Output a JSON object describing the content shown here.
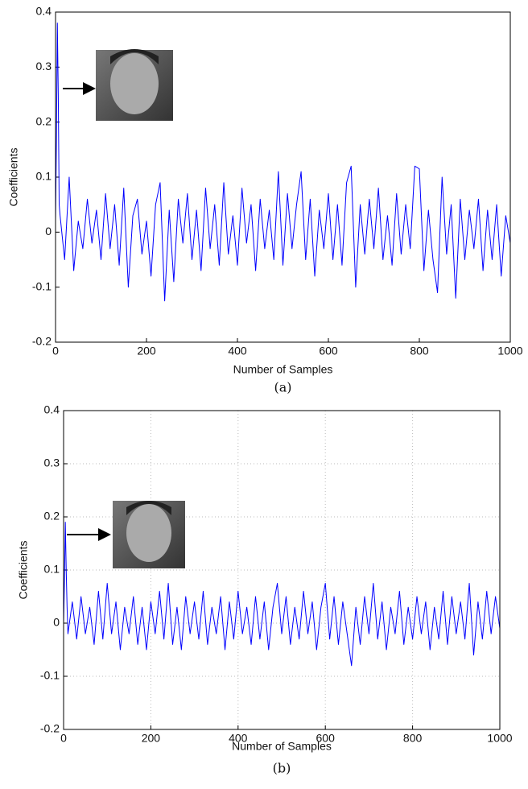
{
  "chart_data": [
    {
      "type": "line",
      "caption": "(a)",
      "xlabel": "Number of Samples",
      "ylabel": "Coefficients",
      "color": "#0000ff",
      "grid": false,
      "xlim": [
        0,
        1000
      ],
      "xticks": [
        0,
        200,
        400,
        600,
        800,
        1000
      ],
      "ylim": [
        -0.2,
        0.4
      ],
      "yticks": [
        -0.2,
        -0.1,
        0,
        0.1,
        0.2,
        0.3,
        0.4
      ],
      "x": [
        0,
        2,
        4,
        6,
        8,
        10,
        20,
        30,
        40,
        50,
        60,
        70,
        80,
        90,
        100,
        110,
        120,
        130,
        140,
        150,
        160,
        170,
        180,
        190,
        200,
        210,
        220,
        230,
        240,
        250,
        260,
        270,
        280,
        290,
        300,
        310,
        320,
        330,
        340,
        350,
        360,
        370,
        380,
        390,
        400,
        410,
        420,
        430,
        440,
        450,
        460,
        470,
        480,
        490,
        500,
        510,
        520,
        530,
        540,
        550,
        560,
        570,
        580,
        590,
        600,
        610,
        620,
        630,
        640,
        650,
        660,
        670,
        680,
        690,
        700,
        710,
        720,
        730,
        740,
        750,
        760,
        770,
        780,
        790,
        800,
        810,
        820,
        830,
        840,
        850,
        860,
        870,
        880,
        890,
        900,
        910,
        920,
        930,
        940,
        950,
        960,
        970,
        980,
        990,
        1000
      ],
      "values": [
        0.02,
        0.17,
        0.38,
        0.25,
        0.05,
        0.03,
        -0.05,
        0.1,
        -0.07,
        0.02,
        -0.03,
        0.06,
        -0.02,
        0.04,
        -0.05,
        0.07,
        -0.03,
        0.05,
        -0.06,
        0.08,
        -0.1,
        0.03,
        0.06,
        -0.04,
        0.02,
        -0.08,
        0.05,
        0.09,
        -0.125,
        0.04,
        -0.09,
        0.06,
        -0.02,
        0.07,
        -0.05,
        0.04,
        -0.07,
        0.08,
        -0.03,
        0.05,
        -0.06,
        0.09,
        -0.04,
        0.03,
        -0.06,
        0.08,
        -0.02,
        0.05,
        -0.07,
        0.06,
        -0.03,
        0.04,
        -0.05,
        0.11,
        -0.06,
        0.07,
        -0.03,
        0.05,
        0.11,
        -0.05,
        0.06,
        -0.08,
        0.04,
        -0.03,
        0.07,
        -0.05,
        0.05,
        -0.06,
        0.09,
        0.12,
        -0.1,
        0.05,
        -0.04,
        0.06,
        -0.03,
        0.08,
        -0.05,
        0.03,
        -0.06,
        0.07,
        -0.04,
        0.05,
        -0.03,
        0.12,
        0.115,
        -0.07,
        0.04,
        -0.05,
        -0.11,
        0.1,
        -0.04,
        0.05,
        -0.12,
        0.06,
        -0.05,
        0.04,
        -0.03,
        0.06,
        -0.07,
        0.04,
        -0.05,
        0.05,
        -0.08,
        0.03,
        -0.02
      ]
    },
    {
      "type": "line",
      "caption": "(b)",
      "xlabel": "Number of Samples",
      "ylabel": "Coefficients",
      "color": "#0000ff",
      "grid": true,
      "xlim": [
        0,
        1000
      ],
      "xticks": [
        0,
        200,
        400,
        600,
        800,
        1000
      ],
      "ylim": [
        -0.2,
        0.4
      ],
      "yticks": [
        -0.2,
        -0.1,
        0,
        0.1,
        0.2,
        0.3,
        0.4
      ],
      "x": [
        0,
        2,
        4,
        6,
        8,
        10,
        20,
        30,
        40,
        50,
        60,
        70,
        80,
        90,
        100,
        110,
        120,
        130,
        140,
        150,
        160,
        170,
        180,
        190,
        200,
        210,
        220,
        230,
        240,
        250,
        260,
        270,
        280,
        290,
        300,
        310,
        320,
        330,
        340,
        350,
        360,
        370,
        380,
        390,
        400,
        410,
        420,
        430,
        440,
        450,
        460,
        470,
        480,
        490,
        500,
        510,
        520,
        530,
        540,
        550,
        560,
        570,
        580,
        590,
        600,
        610,
        620,
        630,
        640,
        650,
        660,
        670,
        680,
        690,
        700,
        710,
        720,
        730,
        740,
        750,
        760,
        770,
        780,
        790,
        800,
        810,
        820,
        830,
        840,
        850,
        860,
        870,
        880,
        890,
        900,
        910,
        920,
        930,
        940,
        950,
        960,
        970,
        980,
        990,
        1000
      ],
      "values": [
        0.0,
        0.08,
        0.19,
        0.1,
        0.03,
        -0.02,
        0.04,
        -0.03,
        0.05,
        -0.02,
        0.03,
        -0.04,
        0.06,
        -0.03,
        0.075,
        -0.02,
        0.04,
        -0.05,
        0.03,
        -0.02,
        0.05,
        -0.04,
        0.03,
        -0.05,
        0.04,
        -0.02,
        0.06,
        -0.03,
        0.075,
        -0.04,
        0.03,
        -0.05,
        0.05,
        -0.02,
        0.04,
        -0.03,
        0.06,
        -0.04,
        0.03,
        -0.02,
        0.05,
        -0.05,
        0.04,
        -0.03,
        0.06,
        -0.02,
        0.03,
        -0.04,
        0.05,
        -0.03,
        0.04,
        -0.05,
        0.03,
        0.075,
        -0.02,
        0.05,
        -0.04,
        0.03,
        -0.03,
        0.06,
        -0.02,
        0.04,
        -0.05,
        0.03,
        0.075,
        -0.03,
        0.05,
        -0.04,
        0.04,
        -0.02,
        -0.08,
        0.03,
        -0.04,
        0.05,
        -0.02,
        0.075,
        -0.03,
        0.04,
        -0.05,
        0.03,
        -0.02,
        0.06,
        -0.04,
        0.03,
        -0.03,
        0.05,
        -0.02,
        0.04,
        -0.05,
        0.03,
        -0.03,
        0.06,
        -0.04,
        0.05,
        -0.02,
        0.04,
        -0.03,
        0.075,
        -0.06,
        0.04,
        -0.03,
        0.06,
        -0.02,
        0.05,
        -0.01
      ]
    }
  ]
}
